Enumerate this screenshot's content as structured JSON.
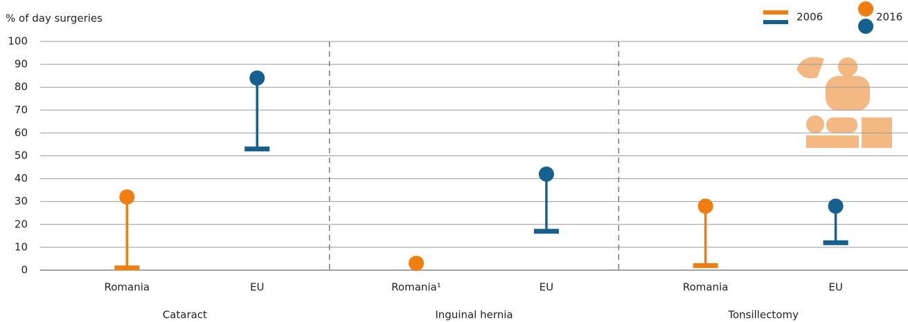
{
  "chart_data": {
    "type": "lollipop",
    "y_label": "% of day surgeries",
    "categories": [
      "Romania",
      "EU",
      "Romania¹",
      "EU",
      "Romania",
      "EU"
    ],
    "groups": [
      "Cataract",
      "Inguinal hernia",
      "Tonsillectomy"
    ],
    "colors": [
      "#ef7d0f",
      "#16608f",
      "#ef7d0f",
      "#16608f",
      "#ef7d0f",
      "#16608f"
    ],
    "series": [
      {
        "name": "2006",
        "values": [
          1,
          53,
          null,
          17,
          2,
          12
        ]
      },
      {
        "name": "2016",
        "values": [
          32,
          84,
          3,
          42,
          28,
          28
        ]
      }
    ],
    "ylim": [
      0,
      100
    ],
    "yticks": [
      0,
      10,
      20,
      30,
      40,
      50,
      60,
      70,
      80,
      90,
      100
    ],
    "grid": true
  }
}
